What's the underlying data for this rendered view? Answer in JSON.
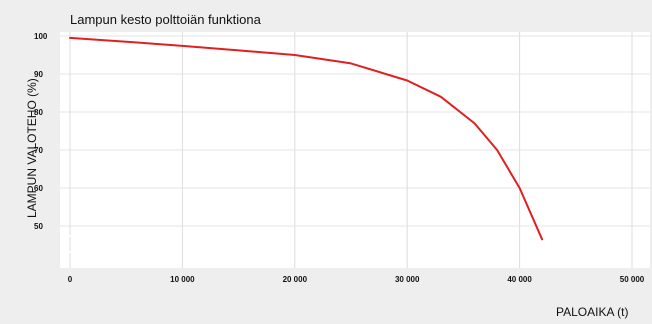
{
  "chart_data": {
    "type": "line",
    "title": "Lampun kesto polttoiän funktiona",
    "xlabel": "PALOAIKA (t)",
    "ylabel": "LAMPUN VALOTEHO (%)",
    "xlim": [
      0,
      50000
    ],
    "ylim": [
      45,
      100
    ],
    "y_axis_break": true,
    "grid": true,
    "x_ticks": [
      0,
      10000,
      20000,
      30000,
      40000,
      50000
    ],
    "x_tick_labels": [
      "0",
      "10 000",
      "20 000",
      "30 000",
      "40 000",
      "50 000"
    ],
    "y_ticks": [
      100,
      90,
      80,
      70,
      60,
      50
    ],
    "y_tick_labels": [
      "100",
      "90",
      "80",
      "70",
      "60",
      "50"
    ],
    "series": [
      {
        "color": "#e02020",
        "x": [
          0,
          5000,
          10000,
          15000,
          20000,
          25000,
          30000,
          33000,
          36000,
          38000,
          40000,
          42000
        ],
        "y": [
          99.5,
          98.5,
          97.4,
          96.2,
          95.0,
          92.8,
          88.3,
          84.0,
          77.0,
          70.0,
          60.0,
          46.5
        ]
      }
    ]
  }
}
